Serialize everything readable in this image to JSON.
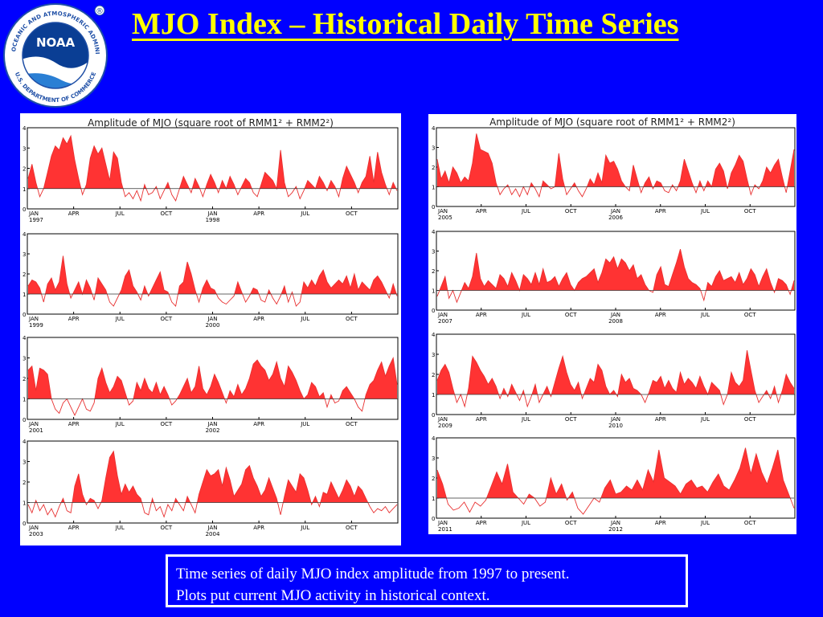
{
  "slide": {
    "title": "MJO Index – Historical Daily Time Series",
    "caption_line1": "Time series of daily MJO index amplitude from 1997 to present.",
    "caption_line2": "Plots put current MJO activity in historical context.",
    "colors": {
      "background": "#0000ff",
      "title": "#ffff00",
      "fill": "#ff3333",
      "line": "#e83030"
    }
  },
  "logo": {
    "center_text": "NOAA",
    "ring_text_top": "NATIONAL OCEANIC AND ATMOSPHERIC ADMINISTRATION",
    "ring_text_bottom": "U.S. DEPARTMENT OF COMMERCE",
    "registered": "®"
  },
  "chart_data": [
    {
      "type": "area",
      "title": "Amplitude of MJO (square root of RMM1² + RMM2²)",
      "panel": "left",
      "xlabel": "",
      "ylabel": "",
      "ylim": [
        0,
        4
      ],
      "yticks": [
        "0",
        "1",
        "2",
        "3",
        "4"
      ],
      "threshold": 1,
      "rows": [
        {
          "ticks": [
            "JAN",
            "APR",
            "JUL",
            "OCT",
            "JAN",
            "APR",
            "JUL",
            "OCT"
          ],
          "years": [
            "1997",
            "1998"
          ],
          "values": [
            1.5,
            2.2,
            1.3,
            0.6,
            1.0,
            1.8,
            2.6,
            3.1,
            2.9,
            3.5,
            3.2,
            3.6,
            2.4,
            1.5,
            0.7,
            1.2,
            2.5,
            3.1,
            2.7,
            3.0,
            2.2,
            1.4,
            2.8,
            2.5,
            1.3,
            0.6,
            0.8,
            0.5,
            0.9,
            0.4,
            1.2,
            0.7,
            0.8,
            1.1,
            0.5,
            0.9,
            1.3,
            0.7,
            0.4,
            1.0,
            1.6,
            1.2,
            0.8,
            1.5,
            1.1,
            0.6,
            1.2,
            1.7,
            1.3,
            0.8,
            1.4,
            1.0,
            1.6,
            1.2,
            0.7,
            1.1,
            1.5,
            1.3,
            0.8,
            0.6,
            1.2,
            1.8,
            1.6,
            1.4,
            1.0,
            2.9,
            1.3,
            0.6,
            0.8,
            1.1,
            0.5,
            0.9,
            1.4,
            1.2,
            1.0,
            1.6,
            1.3,
            0.9,
            1.4,
            1.1,
            0.6,
            1.5,
            2.1,
            1.7,
            1.3,
            0.8,
            1.3,
            1.6,
            2.6,
            1.3,
            2.8,
            1.8,
            1.2,
            0.7,
            1.3,
            0.9
          ]
        },
        {
          "ticks": [
            "JAN",
            "APR",
            "JUL",
            "OCT",
            "JAN",
            "APR",
            "JUL",
            "OCT"
          ],
          "years": [
            "1999",
            "2000"
          ],
          "values": [
            1.4,
            1.7,
            1.6,
            1.3,
            0.6,
            1.5,
            1.8,
            1.2,
            1.6,
            2.9,
            1.5,
            0.8,
            1.2,
            1.6,
            1.0,
            1.7,
            1.3,
            0.7,
            1.8,
            1.5,
            1.2,
            0.6,
            0.4,
            0.8,
            1.2,
            1.9,
            2.2,
            1.4,
            1.1,
            0.7,
            1.4,
            0.9,
            1.3,
            1.7,
            2.1,
            1.2,
            1.1,
            0.6,
            0.4,
            1.4,
            1.6,
            2.6,
            2.0,
            1.2,
            0.6,
            1.3,
            1.7,
            1.3,
            1.2,
            0.8,
            0.6,
            0.5,
            0.7,
            0.9,
            1.6,
            1.1,
            0.6,
            0.9,
            1.3,
            1.2,
            0.7,
            0.6,
            1.2,
            0.8,
            0.5,
            0.9,
            1.4,
            0.6,
            1.1,
            0.4,
            0.6,
            1.6,
            1.3,
            1.7,
            1.4,
            1.9,
            2.2,
            1.6,
            1.3,
            1.5,
            1.7,
            1.5,
            1.9,
            1.3,
            2.0,
            1.2,
            1.6,
            1.4,
            1.2,
            1.7,
            1.9,
            1.6,
            1.2,
            0.8,
            1.5,
            0.9
          ]
        },
        {
          "ticks": [
            "JAN",
            "APR",
            "JUL",
            "OCT",
            "JAN",
            "APR",
            "JUL",
            "OCT"
          ],
          "years": [
            "2001",
            "2002"
          ],
          "values": [
            2.4,
            2.6,
            1.4,
            2.5,
            2.4,
            2.2,
            1.0,
            0.5,
            0.3,
            0.8,
            1.0,
            0.6,
            0.2,
            0.6,
            1.0,
            0.5,
            0.4,
            0.8,
            2.0,
            2.5,
            1.8,
            1.3,
            1.6,
            2.1,
            1.9,
            1.3,
            0.7,
            0.9,
            1.8,
            1.4,
            2.0,
            1.5,
            1.3,
            1.8,
            1.2,
            1.6,
            1.2,
            0.7,
            0.9,
            1.2,
            1.6,
            2.0,
            1.3,
            1.6,
            2.6,
            1.5,
            1.2,
            1.6,
            2.2,
            1.8,
            1.3,
            0.8,
            1.4,
            1.1,
            1.7,
            1.2,
            1.5,
            2.0,
            2.7,
            2.9,
            2.6,
            2.4,
            1.9,
            2.2,
            2.8,
            2.0,
            1.6,
            2.6,
            2.3,
            1.9,
            1.4,
            1.0,
            1.2,
            1.8,
            1.6,
            1.1,
            1.3,
            0.6,
            1.2,
            0.8,
            0.9,
            1.4,
            1.6,
            1.3,
            1.0,
            0.6,
            0.4,
            1.2,
            1.7,
            1.9,
            2.4,
            2.8,
            2.1,
            2.6,
            3.0,
            1.7
          ]
        },
        {
          "ticks": [
            "JAN",
            "APR",
            "JUL",
            "OCT",
            "JAN",
            "APR",
            "JUL",
            "OCT"
          ],
          "years": [
            "2003",
            "2004"
          ],
          "values": [
            0.9,
            0.5,
            1.1,
            0.6,
            0.9,
            0.4,
            0.7,
            0.3,
            0.8,
            1.2,
            0.6,
            0.5,
            1.8,
            2.4,
            1.4,
            0.9,
            1.2,
            1.1,
            0.7,
            1.1,
            2.2,
            3.2,
            3.5,
            2.3,
            1.4,
            1.9,
            1.5,
            1.8,
            1.4,
            1.2,
            0.5,
            0.4,
            1.2,
            0.6,
            0.8,
            0.3,
            0.9,
            0.6,
            1.2,
            0.9,
            0.6,
            1.3,
            0.9,
            0.5,
            1.4,
            2.0,
            2.6,
            2.3,
            2.4,
            2.6,
            1.8,
            2.7,
            2.1,
            1.3,
            1.6,
            1.9,
            2.6,
            2.8,
            2.2,
            1.8,
            1.3,
            1.6,
            2.2,
            1.7,
            1.2,
            0.4,
            1.3,
            2.1,
            1.8,
            1.5,
            2.4,
            2.2,
            1.6,
            0.9,
            1.3,
            0.8,
            1.5,
            1.4,
            2.0,
            1.6,
            1.2,
            1.6,
            2.1,
            1.8,
            1.3,
            1.8,
            1.6,
            1.2,
            0.8,
            0.5,
            0.7,
            0.6,
            0.8,
            0.5,
            0.7,
            0.9
          ]
        }
      ]
    },
    {
      "type": "area",
      "title": "Amplitude of MJO (square root of RMM1² + RMM2²)",
      "panel": "right",
      "xlabel": "",
      "ylabel": "",
      "ylim": [
        0,
        4
      ],
      "yticks": [
        "0",
        "1",
        "2",
        "3",
        "4"
      ],
      "threshold": 1,
      "rows": [
        {
          "ticks": [
            "JAN",
            "APR",
            "JUL",
            "OCT",
            "JAN",
            "APR",
            "JUL",
            "OCT"
          ],
          "years": [
            "2005",
            "2006"
          ],
          "values": [
            2.4,
            1.4,
            1.8,
            1.2,
            2.0,
            1.7,
            1.2,
            1.5,
            1.3,
            2.2,
            3.7,
            2.9,
            2.8,
            2.7,
            2.2,
            1.2,
            0.6,
            0.9,
            1.1,
            0.6,
            0.9,
            0.5,
            1.0,
            0.6,
            1.2,
            0.9,
            0.5,
            1.3,
            1.1,
            0.9,
            1.0,
            2.7,
            1.4,
            0.6,
            0.9,
            1.2,
            0.8,
            0.5,
            0.9,
            1.4,
            1.1,
            1.7,
            1.2,
            2.6,
            2.2,
            2.3,
            1.9,
            1.3,
            1.0,
            0.8,
            2.1,
            1.4,
            0.7,
            1.2,
            1.5,
            0.9,
            1.3,
            1.2,
            0.8,
            0.7,
            1.1,
            0.8,
            1.3,
            2.4,
            1.8,
            1.2,
            0.7,
            1.3,
            0.8,
            1.3,
            1.0,
            1.9,
            2.2,
            1.8,
            0.9,
            1.7,
            2.1,
            2.6,
            2.3,
            1.4,
            0.6,
            1.1,
            0.9,
            1.3,
            2.0,
            1.7,
            2.1,
            2.4,
            1.5,
            0.7,
            1.8,
            2.9
          ]
        },
        {
          "ticks": [
            "JAN",
            "APR",
            "JUL",
            "OCT",
            "JAN",
            "APR",
            "JUL",
            "OCT"
          ],
          "years": [
            "2007",
            "2008"
          ],
          "values": [
            0.7,
            1.2,
            1.7,
            0.6,
            1.0,
            0.4,
            0.9,
            1.4,
            1.1,
            1.7,
            2.9,
            1.6,
            1.2,
            1.5,
            1.3,
            1.1,
            1.8,
            1.6,
            1.2,
            1.9,
            1.5,
            1.0,
            1.8,
            1.6,
            1.3,
            1.9,
            1.3,
            2.1,
            1.4,
            1.5,
            1.7,
            1.2,
            1.6,
            1.9,
            1.3,
            1.0,
            1.4,
            1.6,
            1.7,
            1.9,
            2.1,
            1.4,
            1.9,
            2.6,
            2.4,
            2.7,
            2.1,
            2.6,
            2.4,
            2.0,
            2.3,
            1.6,
            1.8,
            1.3,
            1.0,
            0.9,
            1.8,
            2.2,
            1.3,
            1.2,
            1.8,
            2.4,
            3.1,
            2.2,
            1.6,
            1.4,
            1.3,
            1.1,
            0.5,
            1.4,
            1.2,
            1.7,
            2.0,
            1.5,
            1.6,
            1.7,
            1.4,
            1.9,
            1.3,
            1.6,
            2.1,
            1.8,
            1.2,
            1.7,
            2.1,
            1.4,
            0.9,
            1.6,
            1.5,
            1.3,
            0.8,
            1.5
          ]
        },
        {
          "ticks": [
            "JAN",
            "APR",
            "JUL",
            "OCT",
            "JAN",
            "APR",
            "JUL",
            "OCT"
          ],
          "years": [
            "2009",
            "2010"
          ],
          "values": [
            1.7,
            2.2,
            2.5,
            2.1,
            1.3,
            0.6,
            1.0,
            0.4,
            1.3,
            2.9,
            2.6,
            2.2,
            1.9,
            1.5,
            1.8,
            1.4,
            0.8,
            1.3,
            0.9,
            1.5,
            1.1,
            0.7,
            1.2,
            0.4,
            0.9,
            1.5,
            0.6,
            1.0,
            1.4,
            0.9,
            1.6,
            2.3,
            2.9,
            2.1,
            1.5,
            1.2,
            1.6,
            0.8,
            1.3,
            1.8,
            1.6,
            2.5,
            2.2,
            1.4,
            1.0,
            1.2,
            0.9,
            2.0,
            1.6,
            1.8,
            1.3,
            1.2,
            1.0,
            0.6,
            1.1,
            1.7,
            1.6,
            1.9,
            1.3,
            1.7,
            1.3,
            1.1,
            2.1,
            1.5,
            1.8,
            1.6,
            1.3,
            1.9,
            1.4,
            1.0,
            1.6,
            1.4,
            1.2,
            0.5,
            1.0,
            2.1,
            1.6,
            1.4,
            1.7,
            3.2,
            2.2,
            1.2,
            0.6,
            0.9,
            1.2,
            0.8,
            1.4,
            0.6,
            1.2,
            2.0,
            1.6,
            1.3
          ]
        },
        {
          "ticks": [
            "JAN",
            "APR",
            "JUL",
            "OCT",
            "JAN",
            "APR",
            "JUL",
            "OCT"
          ],
          "years": [
            "2011",
            "2012"
          ],
          "values": [
            2.4,
            1.7,
            0.7,
            0.4,
            0.5,
            0.8,
            0.3,
            0.8,
            0.6,
            0.9,
            1.6,
            2.3,
            1.7,
            2.7,
            1.3,
            1.0,
            0.7,
            1.2,
            1.0,
            0.6,
            0.8,
            2.0,
            1.2,
            1.7,
            0.9,
            1.3,
            0.5,
            0.2,
            0.6,
            1.0,
            0.8,
            1.5,
            1.9,
            1.2,
            1.3,
            1.6,
            1.4,
            1.9,
            1.4,
            2.4,
            1.8,
            3.4,
            2.0,
            1.8,
            1.6,
            1.2,
            1.7,
            1.9,
            1.5,
            1.6,
            1.3,
            1.8,
            2.2,
            1.6,
            1.4,
            1.9,
            2.5,
            3.5,
            2.2,
            3.2,
            2.3,
            1.7,
            2.5,
            3.4,
            1.9,
            1.2,
            0.5
          ]
        }
      ]
    }
  ]
}
